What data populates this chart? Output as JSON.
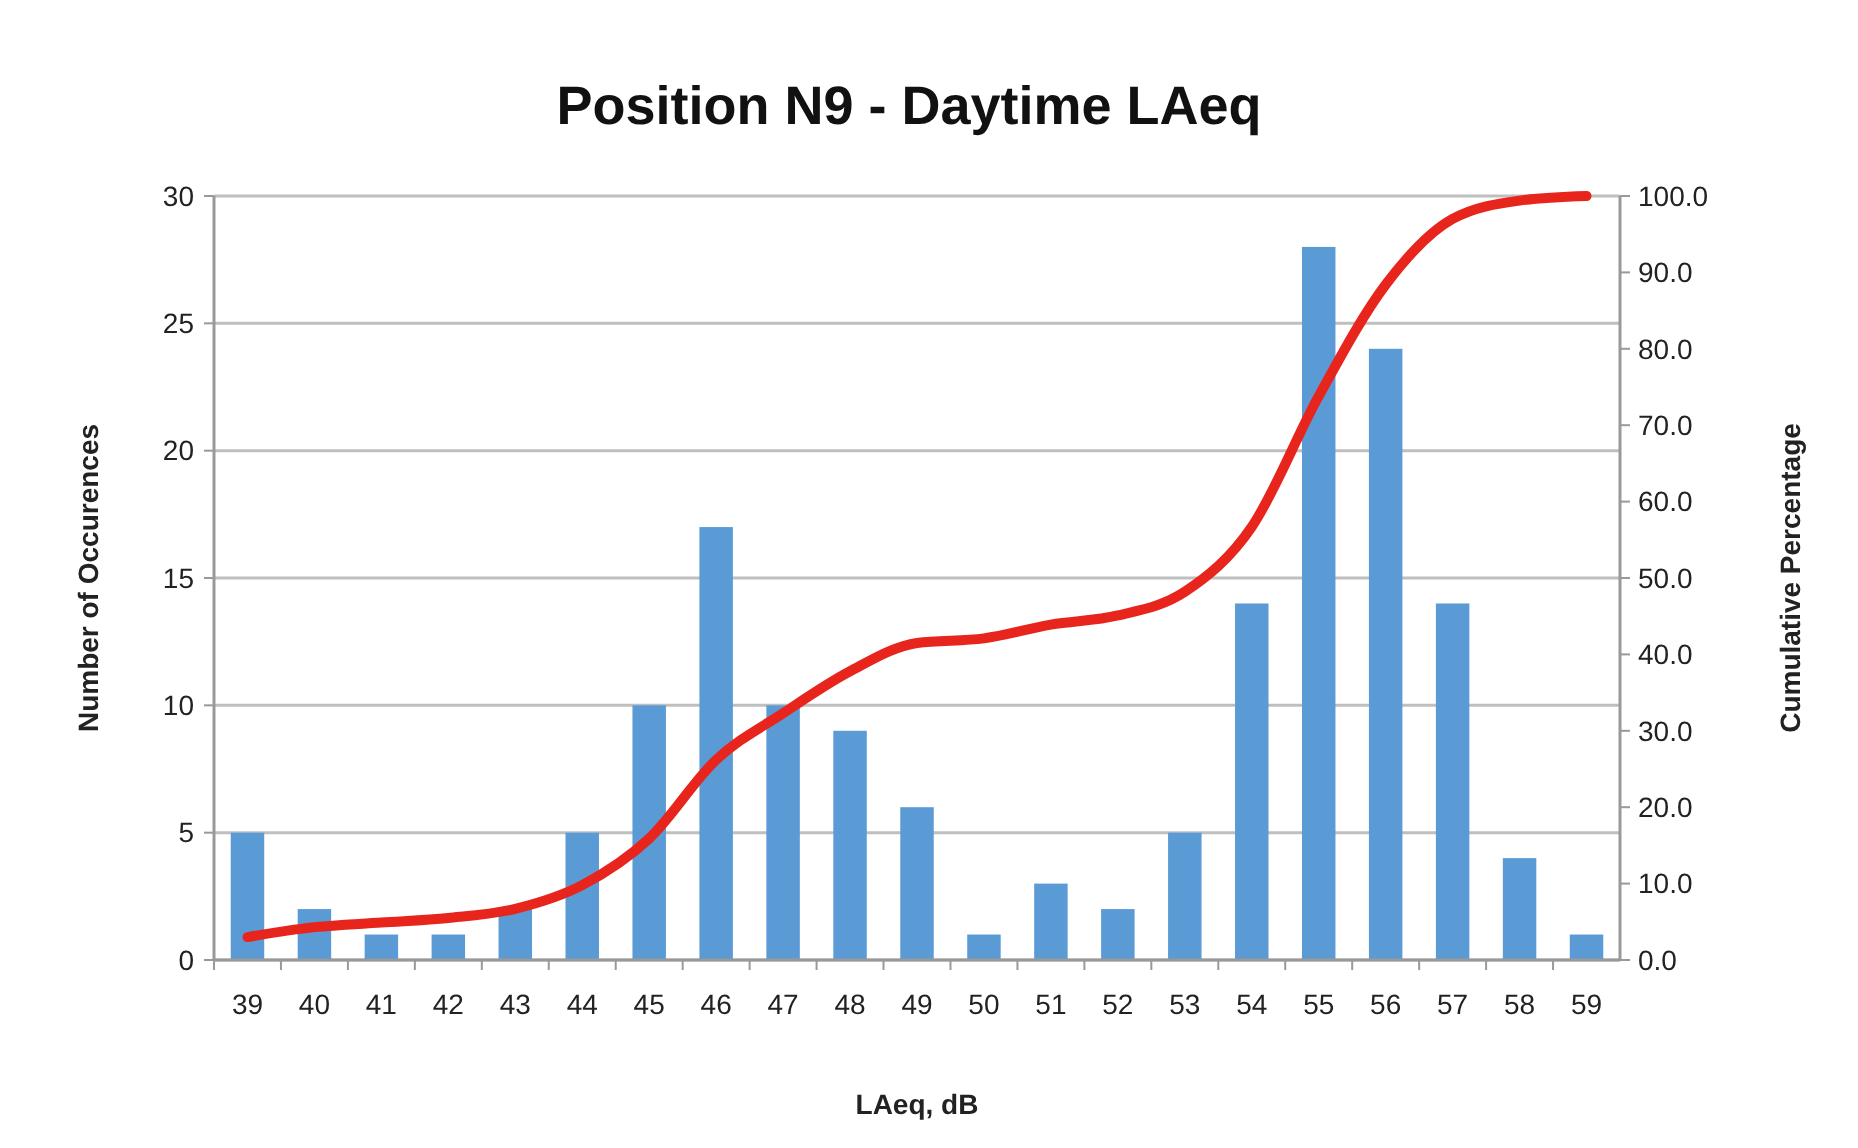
{
  "chart_data": {
    "type": "bar",
    "title": "Position N9 - Daytime LAeq",
    "xlabel": "LAeq, dB",
    "ylabel": "Number of Occurences",
    "y2label": "Cumulative Percentage",
    "categories": [
      "39",
      "40",
      "41",
      "42",
      "43",
      "44",
      "45",
      "46",
      "47",
      "48",
      "49",
      "50",
      "51",
      "52",
      "53",
      "54",
      "55",
      "56",
      "57",
      "58",
      "59"
    ],
    "series": [
      {
        "color": "#5b9bd5",
        "values": [
          5,
          2,
          1,
          1,
          2,
          5,
          10,
          17,
          10,
          9,
          6,
          1,
          3,
          2,
          5,
          14,
          28,
          24,
          14,
          4,
          1
        ]
      },
      {
        "type": "line",
        "axis": "y2",
        "color": "#e8251c",
        "values": [
          3.0,
          4.3,
          4.9,
          5.5,
          6.7,
          9.8,
          15.9,
          26.2,
          32.3,
          37.8,
          41.5,
          42.1,
          43.9,
          45.1,
          48.2,
          56.7,
          73.8,
          88.4,
          97.0,
          99.4,
          100.0
        ]
      }
    ],
    "ylim": [
      0,
      30
    ],
    "yticks": [
      0,
      5,
      10,
      15,
      20,
      25,
      30
    ],
    "y2lim": [
      0,
      100
    ],
    "y2ticks": [
      {
        "value": 0,
        "label": "0.0"
      },
      {
        "value": 10,
        "label": "10.0"
      },
      {
        "value": 20,
        "label": "20.0"
      },
      {
        "value": 30,
        "label": "30.0"
      },
      {
        "value": 40,
        "label": "40.0"
      },
      {
        "value": 50,
        "label": "50.0"
      },
      {
        "value": 60,
        "label": "60.0"
      },
      {
        "value": 70,
        "label": "70.0"
      },
      {
        "value": 80,
        "label": "80.0"
      },
      {
        "value": 90,
        "label": "90.0"
      },
      {
        "value": 100,
        "label": "100.0"
      }
    ],
    "grid": "y"
  }
}
